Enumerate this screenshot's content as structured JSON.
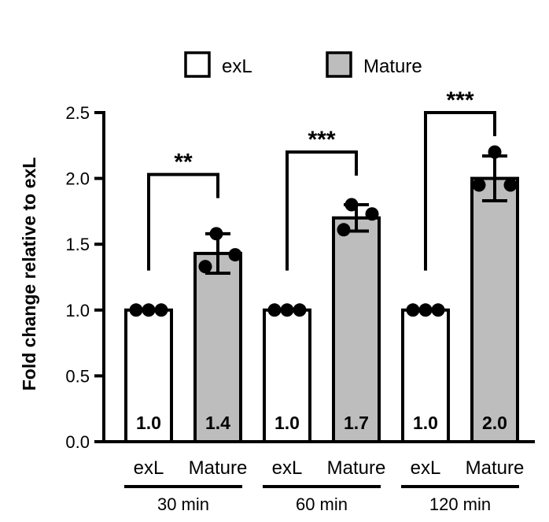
{
  "chart_data": {
    "type": "bar",
    "ylabel": "Fold change relative to exL",
    "ylim": [
      0,
      2.5
    ],
    "yticks": [
      "0.0",
      "0.5",
      "1.0",
      "1.5",
      "2.0",
      "2.5"
    ],
    "ytick_values": [
      0,
      0.5,
      1.0,
      1.5,
      2.0,
      2.5
    ],
    "legend": {
      "placement": "top-center",
      "entries": [
        {
          "name": "exL",
          "color": "#ffffff"
        },
        {
          "name": "Mature",
          "color": "#bdbdbd"
        }
      ]
    },
    "groups": [
      {
        "label": "30 min",
        "bars": [
          {
            "category": "exL",
            "series": "exL",
            "value": 1.0,
            "value_label": "1.0",
            "sd": 0,
            "points": [
              1.0,
              1.0,
              1.0
            ]
          },
          {
            "category": "Mature",
            "series": "Mature",
            "value": 1.43,
            "value_label": "1.4",
            "sd": 0.15,
            "points": [
              1.58,
              1.42,
              1.33
            ]
          }
        ],
        "significance": "**",
        "bracket_y": 2.03
      },
      {
        "label": "60 min",
        "bars": [
          {
            "category": "exL",
            "series": "exL",
            "value": 1.0,
            "value_label": "1.0",
            "sd": 0,
            "points": [
              1.0,
              1.0,
              1.0
            ]
          },
          {
            "category": "Mature",
            "series": "Mature",
            "value": 1.7,
            "value_label": "1.7",
            "sd": 0.1,
            "points": [
              1.8,
              1.73,
              1.61
            ]
          }
        ],
        "significance": "***",
        "bracket_y": 2.2
      },
      {
        "label": "120 min",
        "bars": [
          {
            "category": "exL",
            "series": "exL",
            "value": 1.0,
            "value_label": "1.0",
            "sd": 0,
            "points": [
              1.0,
              1.0,
              1.0
            ]
          },
          {
            "category": "Mature",
            "series": "Mature",
            "value": 2.0,
            "value_label": "2.0",
            "sd": 0.17,
            "points": [
              2.2,
              1.95,
              1.95
            ]
          }
        ],
        "significance": "***",
        "bracket_y": 2.5
      }
    ]
  }
}
